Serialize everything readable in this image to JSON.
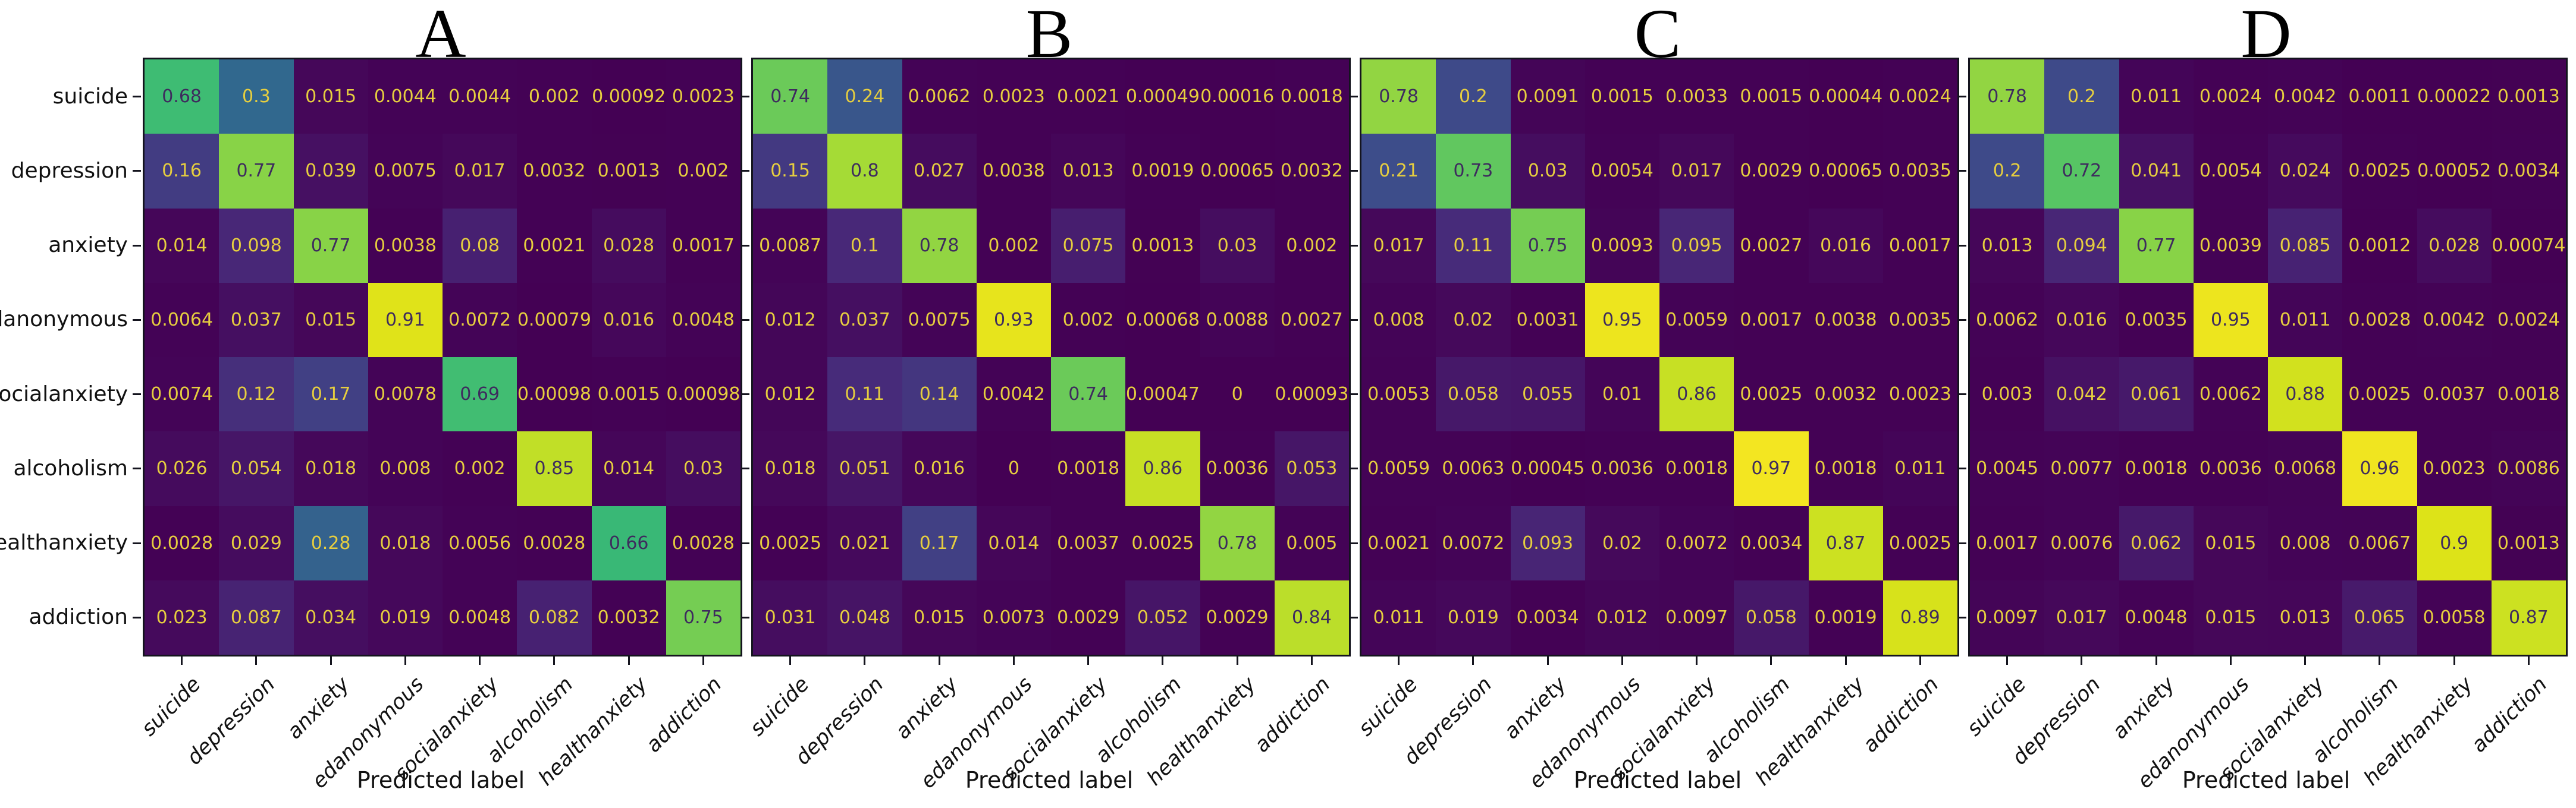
{
  "figure": {
    "background": "#ffffff",
    "x_axis_title": "Predicted label",
    "categories": [
      "suicide",
      "depression",
      "anxiety",
      "edanonymous",
      "socialanxiety",
      "alcoholism",
      "healthanxiety",
      "addiction"
    ]
  },
  "style": {
    "colormap": "viridis",
    "viridis_stops": [
      [
        0.0,
        "#440154"
      ],
      [
        0.1,
        "#482878"
      ],
      [
        0.2,
        "#3e4a89"
      ],
      [
        0.3,
        "#31688e"
      ],
      [
        0.4,
        "#26828e"
      ],
      [
        0.5,
        "#21918c"
      ],
      [
        0.6,
        "#28ae80"
      ],
      [
        0.7,
        "#44bf70"
      ],
      [
        0.8,
        "#a5db36"
      ],
      [
        0.9,
        "#dde318"
      ],
      [
        1.0,
        "#fde725"
      ]
    ],
    "cell_text_light": "#e6ce3f",
    "cell_text_dark": "#3e2b5e",
    "dark_text_threshold": 0.5,
    "spine_color": "#14141e",
    "label_color": "#111111"
  },
  "chart_data": [
    {
      "type": "heatmap",
      "title": "A",
      "xlabel": "Predicted label",
      "categories": [
        "suicide",
        "depression",
        "anxiety",
        "edanonymous",
        "socialanxiety",
        "alcoholism",
        "healthanxiety",
        "addiction"
      ],
      "values": [
        [
          0.68,
          0.3,
          0.015,
          0.0044,
          0.0044,
          0.002,
          0.00092,
          0.0023
        ],
        [
          0.16,
          0.77,
          0.039,
          0.0075,
          0.017,
          0.0032,
          0.0013,
          0.002
        ],
        [
          0.014,
          0.098,
          0.77,
          0.0038,
          0.08,
          0.0021,
          0.028,
          0.0017
        ],
        [
          0.0064,
          0.037,
          0.015,
          0.91,
          0.0072,
          0.00079,
          0.016,
          0.0048
        ],
        [
          0.0074,
          0.12,
          0.17,
          0.0078,
          0.69,
          0.00098,
          0.0015,
          0.00098
        ],
        [
          0.026,
          0.054,
          0.018,
          0.008,
          0.002,
          0.85,
          0.014,
          0.03
        ],
        [
          0.0028,
          0.029,
          0.28,
          0.018,
          0.0056,
          0.0028,
          0.66,
          0.0028
        ],
        [
          0.023,
          0.087,
          0.034,
          0.019,
          0.0048,
          0.082,
          0.0032,
          0.75
        ]
      ]
    },
    {
      "type": "heatmap",
      "title": "B",
      "xlabel": "Predicted label",
      "categories": [
        "suicide",
        "depression",
        "anxiety",
        "edanonymous",
        "socialanxiety",
        "alcoholism",
        "healthanxiety",
        "addiction"
      ],
      "values": [
        [
          0.74,
          0.24,
          0.0062,
          0.0023,
          0.0021,
          0.00049,
          0.00016,
          0.0018
        ],
        [
          0.15,
          0.8,
          0.027,
          0.0038,
          0.013,
          0.0019,
          0.00065,
          0.0032
        ],
        [
          0.0087,
          0.1,
          0.78,
          0.002,
          0.075,
          0.0013,
          0.03,
          0.002
        ],
        [
          0.012,
          0.037,
          0.0075,
          0.93,
          0.002,
          0.00068,
          0.0088,
          0.0027
        ],
        [
          0.012,
          0.11,
          0.14,
          0.0042,
          0.74,
          0.00047,
          0,
          0.00093
        ],
        [
          0.018,
          0.051,
          0.016,
          0,
          0.0018,
          0.86,
          0.0036,
          0.053
        ],
        [
          0.0025,
          0.021,
          0.17,
          0.014,
          0.0037,
          0.0025,
          0.78,
          0.005
        ],
        [
          0.031,
          0.048,
          0.015,
          0.0073,
          0.0029,
          0.052,
          0.0029,
          0.84
        ]
      ]
    },
    {
      "type": "heatmap",
      "title": "C",
      "xlabel": "Predicted label",
      "categories": [
        "suicide",
        "depression",
        "anxiety",
        "edanonymous",
        "socialanxiety",
        "alcoholism",
        "healthanxiety",
        "addiction"
      ],
      "values": [
        [
          0.78,
          0.2,
          0.0091,
          0.0015,
          0.0033,
          0.0015,
          0.00044,
          0.0024
        ],
        [
          0.21,
          0.73,
          0.03,
          0.0054,
          0.017,
          0.0029,
          0.00065,
          0.0035
        ],
        [
          0.017,
          0.11,
          0.75,
          0.0093,
          0.095,
          0.0027,
          0.016,
          0.0017
        ],
        [
          0.008,
          0.02,
          0.0031,
          0.95,
          0.0059,
          0.0017,
          0.0038,
          0.0035
        ],
        [
          0.0053,
          0.058,
          0.055,
          0.01,
          0.86,
          0.0025,
          0.0032,
          0.0023
        ],
        [
          0.0059,
          0.0063,
          0.00045,
          0.0036,
          0.0018,
          0.97,
          0.0018,
          0.011
        ],
        [
          0.0021,
          0.0072,
          0.093,
          0.02,
          0.0072,
          0.0034,
          0.87,
          0.0025
        ],
        [
          0.011,
          0.019,
          0.0034,
          0.012,
          0.0097,
          0.058,
          0.0019,
          0.89
        ]
      ]
    },
    {
      "type": "heatmap",
      "title": "D",
      "xlabel": "Predicted label",
      "categories": [
        "suicide",
        "depression",
        "anxiety",
        "edanonymous",
        "socialanxiety",
        "alcoholism",
        "healthanxiety",
        "addiction"
      ],
      "values": [
        [
          0.78,
          0.2,
          0.011,
          0.0024,
          0.0042,
          0.0011,
          0.00022,
          0.0013
        ],
        [
          0.2,
          0.72,
          0.041,
          0.0054,
          0.024,
          0.0025,
          0.00052,
          0.0034
        ],
        [
          0.013,
          0.094,
          0.77,
          0.0039,
          0.085,
          0.0012,
          0.028,
          0.00074
        ],
        [
          0.0062,
          0.016,
          0.0035,
          0.95,
          0.011,
          0.0028,
          0.0042,
          0.0024
        ],
        [
          0.003,
          0.042,
          0.061,
          0.0062,
          0.88,
          0.0025,
          0.0037,
          0.0018
        ],
        [
          0.0045,
          0.0077,
          0.0018,
          0.0036,
          0.0068,
          0.96,
          0.0023,
          0.0086
        ],
        [
          0.0017,
          0.0076,
          0.062,
          0.015,
          0.008,
          0.0067,
          0.9,
          0.0013
        ],
        [
          0.0097,
          0.017,
          0.0048,
          0.015,
          0.013,
          0.065,
          0.0058,
          0.87
        ]
      ]
    }
  ]
}
